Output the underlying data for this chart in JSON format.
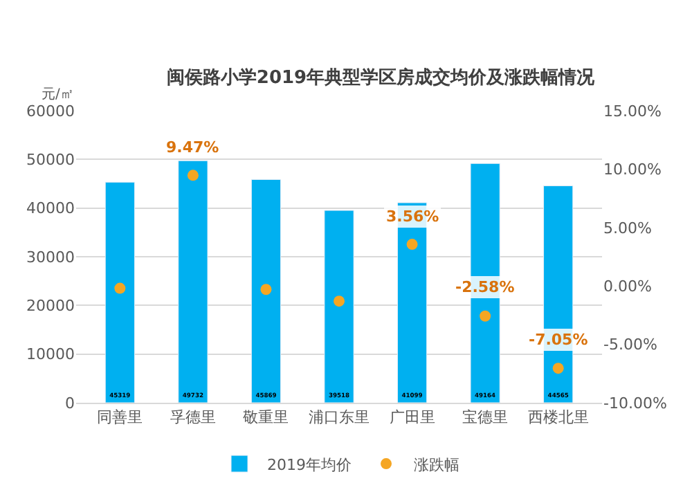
{
  "chart_data": {
    "type": "bar",
    "title": "闽侯路小学2019年典型学区房成交均价及涨跌幅情况",
    "ylabel": "元/㎡",
    "categories": [
      "同善里",
      "孚德里",
      "敬重里",
      "浦口东里",
      "广田里",
      "宝德里",
      "西楼北里"
    ],
    "series": [
      {
        "name": "2019年均价",
        "color": "#00b0f0",
        "values": [
          45319,
          49732,
          45869,
          39518,
          41099,
          49164,
          44565
        ],
        "value_labels": [
          "45319",
          "49732",
          "45869",
          "39518",
          "41099",
          "49164",
          "44565"
        ]
      },
      {
        "name": "涨跌幅",
        "type": "scatter",
        "axis": "y2",
        "color": "#f5a623",
        "marker": "circle",
        "values": [
          -0.2,
          9.47,
          -0.3,
          -1.3,
          3.56,
          -2.58,
          -7.05
        ],
        "value_labels": [
          null,
          "9.47%",
          null,
          null,
          "3.56%",
          "-2.58%",
          "-7.05%"
        ]
      }
    ],
    "ylim": [
      0,
      60000
    ],
    "yticks": [
      0,
      10000,
      20000,
      30000,
      40000,
      50000,
      60000
    ],
    "y2lim": [
      -10,
      15
    ],
    "y2ticks": [
      {
        "value": -10,
        "label": "-10.00%"
      },
      {
        "value": -5,
        "label": "-5.00%"
      },
      {
        "value": 0,
        "label": "0.00%"
      },
      {
        "value": 5,
        "label": "5.00%"
      },
      {
        "value": 10,
        "label": "10.00%"
      },
      {
        "value": 15,
        "label": "15.00%"
      }
    ],
    "grid": "y",
    "legend": "bottom"
  }
}
